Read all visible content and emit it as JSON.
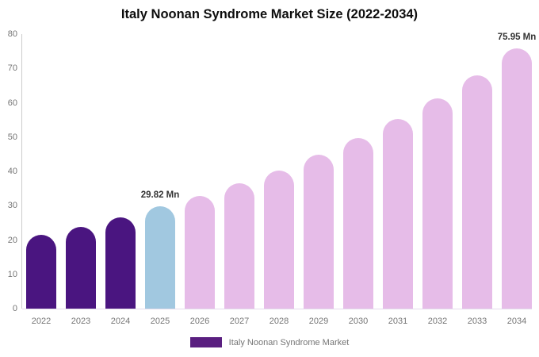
{
  "title": "Italy Noonan Syndrome Market Size (2022-2034)",
  "chart_data": {
    "type": "bar",
    "categories": [
      "2022",
      "2023",
      "2024",
      "2025",
      "2026",
      "2027",
      "2028",
      "2029",
      "2030",
      "2031",
      "2032",
      "2033",
      "2034"
    ],
    "values": [
      21.6,
      23.9,
      26.6,
      29.82,
      32.9,
      36.5,
      40.3,
      44.8,
      49.8,
      55.3,
      61.2,
      67.9,
      75.95
    ],
    "bar_colors": [
      "#4A1580",
      "#4A1580",
      "#4A1580",
      "#A1C8E0",
      "#E6BCE8",
      "#E6BCE8",
      "#E6BCE8",
      "#E6BCE8",
      "#E6BCE8",
      "#E6BCE8",
      "#E6BCE8",
      "#E6BCE8",
      "#E6BCE8"
    ],
    "color_roles": {
      "historical": "#4A1580",
      "base_year": "#A1C8E0",
      "forecast": "#E6BCE8"
    },
    "annotations": [
      {
        "category": "2025",
        "text": "29.82 Mn"
      },
      {
        "category": "2034",
        "text": "75.95 Mn"
      }
    ],
    "ylim": [
      0,
      80
    ],
    "yticks": [
      0,
      10,
      20,
      30,
      40,
      50,
      60,
      70,
      80
    ],
    "xlabel": "",
    "ylabel": "",
    "grid": false,
    "legend_position": "bottom",
    "legend": [
      {
        "label": "Italy Noonan Syndrome Market",
        "color": "#5A1F80"
      }
    ]
  }
}
